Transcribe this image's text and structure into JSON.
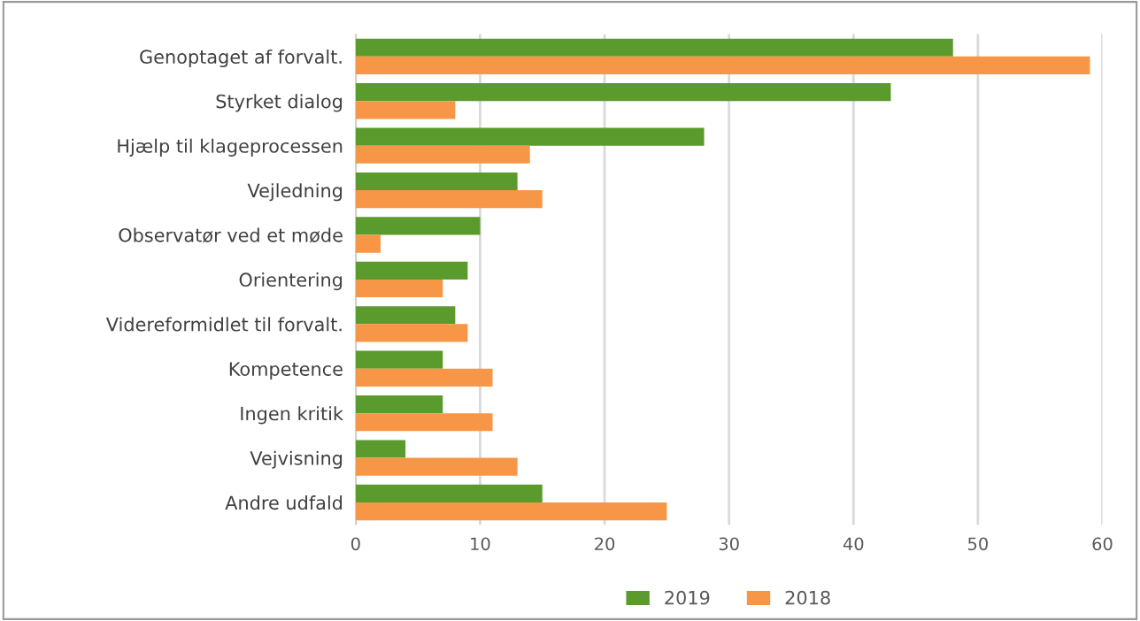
{
  "chart_data": {
    "type": "bar",
    "orientation": "horizontal",
    "categories": [
      "Genoptaget af forvalt.",
      "Styrket dialog",
      "Hjælp til klageprocessen",
      "Vejledning",
      "Observatør ved et møde",
      "Orientering",
      "Videreformidlet til forvalt.",
      "Kompetence",
      "Ingen kritik",
      "Vejvisning",
      "Andre udfald"
    ],
    "series": [
      {
        "name": "2019",
        "color": "#5b9a2d",
        "values": [
          48,
          43,
          28,
          13,
          10,
          9,
          8,
          7,
          7,
          4,
          15
        ]
      },
      {
        "name": "2018",
        "color": "#f79646",
        "values": [
          59,
          8,
          14,
          15,
          2,
          7,
          9,
          11,
          11,
          13,
          25
        ]
      }
    ],
    "xlim": [
      0,
      60
    ],
    "xticks": [
      0,
      10,
      20,
      30,
      40,
      50,
      60
    ],
    "grid": "x",
    "legend": "bottom"
  }
}
